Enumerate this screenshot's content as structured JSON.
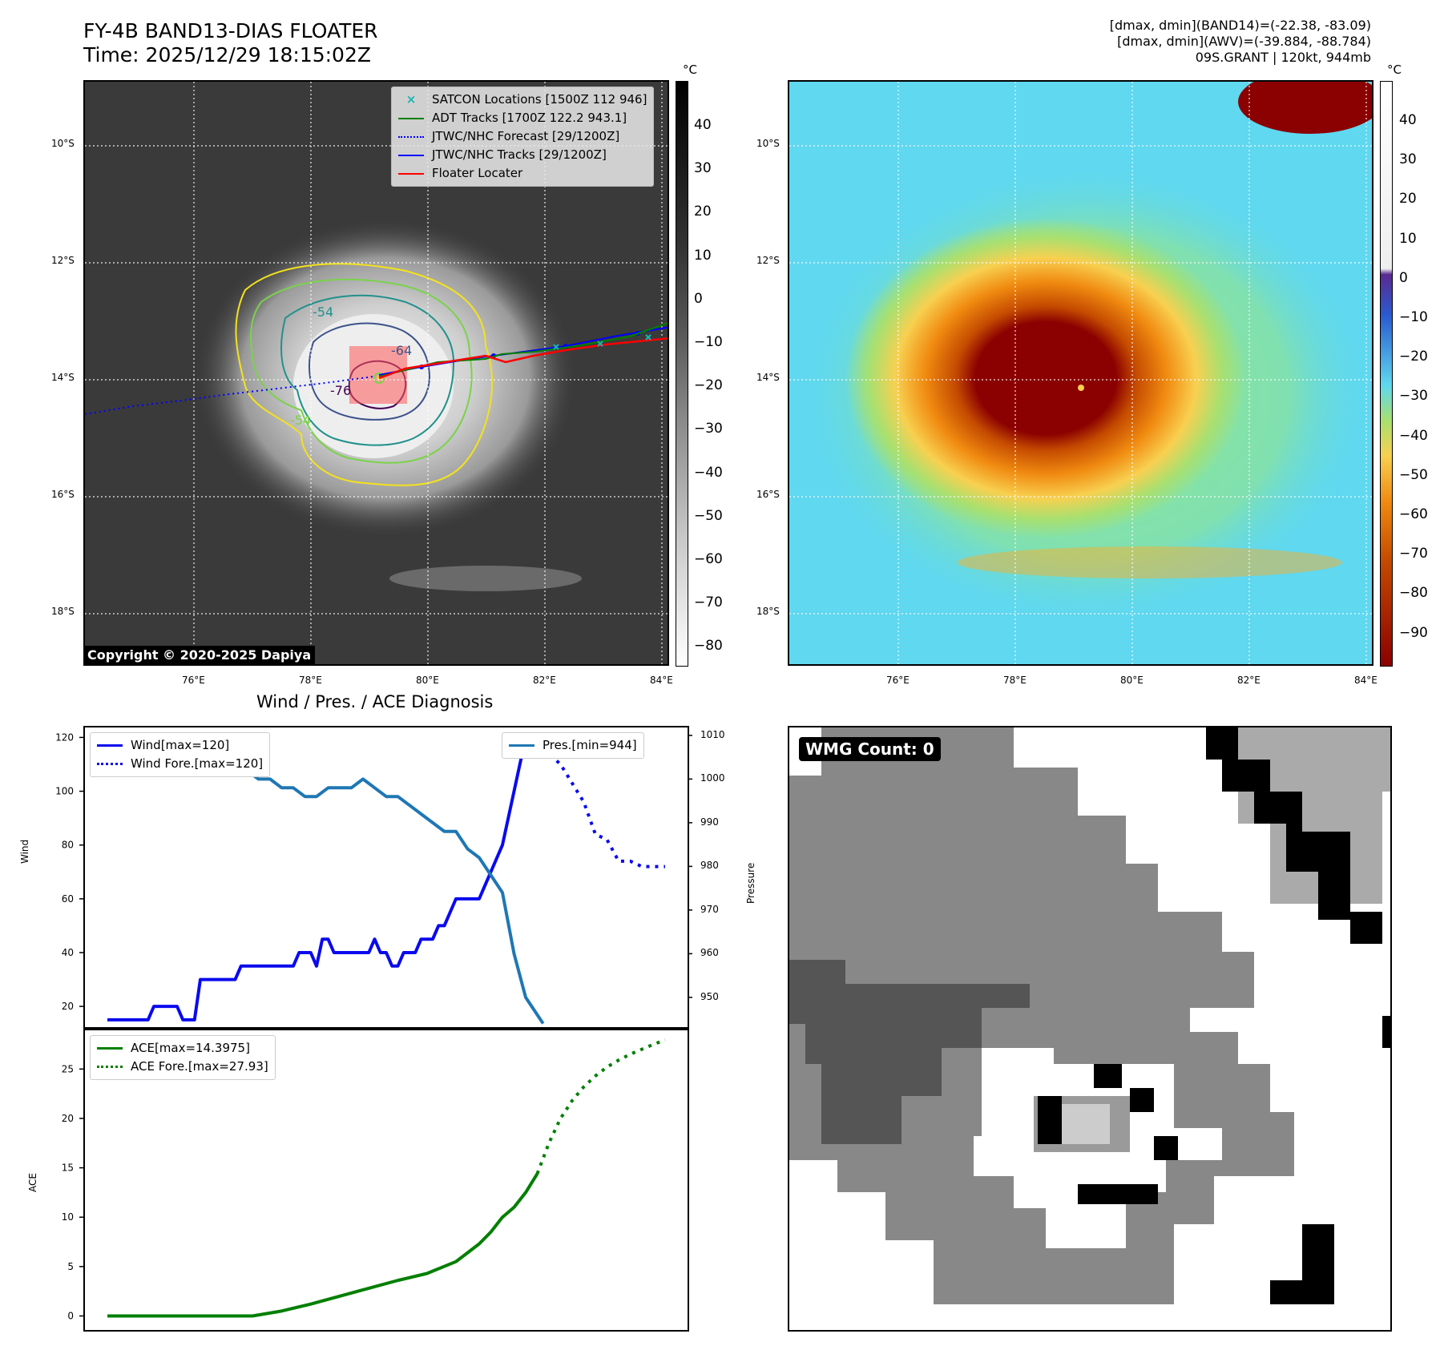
{
  "header": {
    "title_line1": "FY-4B BAND13-DIAS FLOATER",
    "title_line2": "Time: 2025/12/29 18:15:02Z",
    "info_line1": "[dmax, dmin](BAND14)=(-22.38, -83.09)",
    "info_line2": "[dmax, dmin](AWV)=(-39.884, -88.784)",
    "info_line3": "09S.GRANT | 120kt, 944mb"
  },
  "map": {
    "lat_labels": [
      "10°S",
      "12°S",
      "14°S",
      "16°S",
      "18°S"
    ],
    "lon_labels": [
      "76°E",
      "78°E",
      "80°E",
      "82°E",
      "84°E"
    ],
    "contour_labels": [
      "-54",
      "-64",
      "-76",
      "-54"
    ],
    "copyright": "Copyright © 2020-2025 Dapiya",
    "legend": [
      {
        "label": "SATCON Locations [1500Z 112 946]",
        "color": "#19b4b4",
        "style": "marker-x"
      },
      {
        "label": "ADT Tracks [1700Z 122.2 943.1]",
        "color": "#008000",
        "style": "solid"
      },
      {
        "label": "JTWC/NHC Forecast [29/1200Z]",
        "color": "#0000ff",
        "style": "dotted"
      },
      {
        "label": "JTWC/NHC Tracks [29/1200Z]",
        "color": "#0000ff",
        "style": "solid-dot"
      },
      {
        "label": "Floater Locater",
        "color": "#ff0000",
        "style": "solid"
      }
    ]
  },
  "colorbar_ir": {
    "unit": "°C",
    "ticks": [
      "40",
      "30",
      "20",
      "10",
      "0",
      "−10",
      "−20",
      "−30",
      "−40",
      "−50",
      "−60",
      "−70",
      "−80"
    ]
  },
  "colorbar_color": {
    "unit": "°C",
    "ticks": [
      "40",
      "30",
      "20",
      "10",
      "0",
      "−10",
      "−20",
      "−30",
      "−40",
      "−50",
      "−60",
      "−70",
      "−80",
      "−90"
    ]
  },
  "wmg": {
    "label": "WMG Count: 0"
  },
  "chart_data": [
    {
      "type": "line",
      "title": "Wind / Pres. / ACE Diagnosis",
      "ylabel": "Wind",
      "y2label": "Pressure",
      "ylim": [
        12,
        124
      ],
      "y2lim": [
        943,
        1012
      ],
      "yticks": [
        "20",
        "40",
        "60",
        "80",
        "100",
        "120"
      ],
      "y2ticks": [
        "950",
        "960",
        "970",
        "980",
        "990",
        "1000",
        "1010"
      ],
      "series": [
        {
          "name": "Wind[max=120]",
          "color": "#0a0aee",
          "style": "solid",
          "x": [
            0,
            1,
            2,
            3,
            4,
            5,
            6,
            7,
            8,
            9,
            10,
            11,
            12,
            13,
            14,
            15,
            16,
            17,
            18,
            19,
            20,
            21,
            22,
            23,
            24,
            25,
            26,
            27,
            28,
            29,
            30,
            31,
            32,
            33,
            34,
            35,
            36,
            37,
            38,
            39,
            40,
            41,
            42,
            43,
            44,
            45,
            46,
            47,
            48,
            49,
            50,
            51,
            52,
            53,
            54,
            55,
            56,
            57,
            58,
            59,
            60,
            61,
            62,
            63,
            64,
            65,
            66,
            67,
            68,
            69,
            70,
            71,
            72,
            73,
            74,
            75
          ],
          "values": [
            15,
            15,
            15,
            15,
            15,
            15,
            15,
            15,
            20,
            20,
            20,
            20,
            20,
            15,
            15,
            15,
            30,
            30,
            30,
            30,
            30,
            30,
            30,
            35,
            35,
            35,
            35,
            35,
            35,
            35,
            35,
            35,
            35,
            40,
            40,
            40,
            35,
            45,
            45,
            40,
            40,
            40,
            40,
            40,
            40,
            40,
            45,
            40,
            40,
            35,
            35,
            40,
            40,
            40,
            45,
            45,
            45,
            50,
            50,
            55,
            60,
            60,
            60,
            60,
            60,
            65,
            70,
            75,
            80,
            90,
            100,
            110,
            120,
            120,
            118,
            118
          ]
        },
        {
          "name": "Wind Fore.[max=120]",
          "color": "#0a0aee",
          "style": "dotted",
          "x": [
            74,
            78,
            82,
            84,
            86,
            88,
            90,
            92,
            94,
            96
          ],
          "values": [
            118,
            110,
            96,
            84,
            82,
            74,
            74,
            72,
            72,
            72
          ]
        },
        {
          "name": "Pres.[min=944]",
          "color": "#1f77b4",
          "style": "solid",
          "axis": "y2",
          "x": [
            0,
            2,
            4,
            6,
            8,
            10,
            12,
            14,
            16,
            18,
            20,
            22,
            24,
            26,
            28,
            30,
            32,
            34,
            36,
            38,
            40,
            42,
            44,
            46,
            48,
            50,
            52,
            54,
            56,
            58,
            60,
            62,
            64,
            66,
            68,
            70,
            72,
            74,
            75
          ],
          "values": [
            1010,
            1010,
            1008,
            1008,
            1008,
            1006,
            1006,
            1004,
            1004,
            1003,
            1003,
            1002,
            1002,
            1000,
            1000,
            998,
            998,
            996,
            996,
            998,
            998,
            998,
            1000,
            998,
            996,
            996,
            994,
            992,
            990,
            988,
            988,
            984,
            982,
            978,
            974,
            960,
            950,
            946,
            944
          ]
        }
      ]
    },
    {
      "type": "line",
      "ylabel": "ACE",
      "ylim": [
        -1.5,
        29
      ],
      "yticks": [
        "0",
        "5",
        "10",
        "15",
        "20",
        "25"
      ],
      "series": [
        {
          "name": "ACE[max=14.3975]",
          "color": "#007f00",
          "style": "solid",
          "x": [
            0,
            10,
            20,
            25,
            30,
            35,
            40,
            45,
            50,
            55,
            60,
            62,
            64,
            66,
            68,
            70,
            72,
            74
          ],
          "values": [
            0,
            0,
            0,
            0,
            0.5,
            1.2,
            2.0,
            2.8,
            3.6,
            4.3,
            5.5,
            6.4,
            7.3,
            8.5,
            10.0,
            11.0,
            12.5,
            14.4
          ]
        },
        {
          "name": "ACE Fore.[max=27.93]",
          "color": "#007f00",
          "style": "dotted",
          "x": [
            74,
            76,
            78,
            80,
            82,
            84,
            86,
            88,
            90,
            92,
            94,
            96
          ],
          "values": [
            14.4,
            17.5,
            20.0,
            21.8,
            23.2,
            24.3,
            25.2,
            25.9,
            26.5,
            27.0,
            27.5,
            27.93
          ]
        }
      ]
    }
  ]
}
